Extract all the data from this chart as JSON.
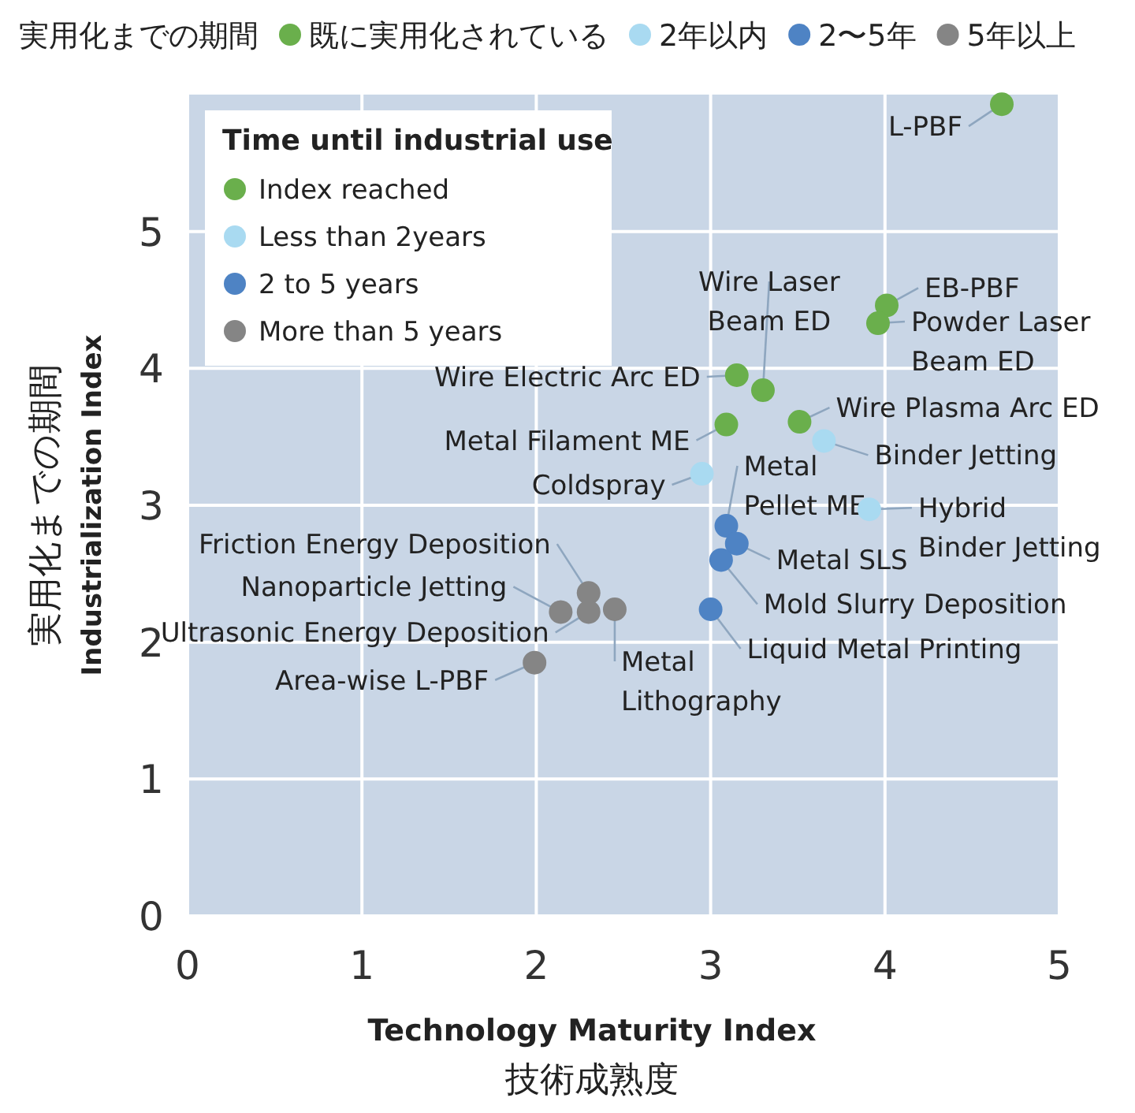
{
  "chart_data": {
    "type": "scatter",
    "xlabel": "Technology Maturity Index\n技術成熟度",
    "ylabel": "実用化までの期間\nIndustrialization Index",
    "legend_title": "Time until industrial use",
    "legend": "top left",
    "grid": true,
    "marker": "circle",
    "xlim": [
      0,
      5
    ],
    "xticks": [
      0,
      1,
      2,
      3,
      4,
      5
    ],
    "ylim": [
      0,
      6
    ],
    "yticks": [
      0,
      1,
      2,
      3,
      4,
      5
    ],
    "series": [
      {
        "name": "Index reached",
        "color": "#6aaf4c",
        "x": [
          4.67,
          4.01,
          3.96,
          3.3,
          3.15,
          3.51,
          3.09
        ],
        "values": [
          5.93,
          4.46,
          4.33,
          3.84,
          3.95,
          3.61,
          3.59
        ]
      },
      {
        "name": "Less than 2years",
        "color": "#a9daf1",
        "x": [
          3.65,
          2.95,
          3.91
        ],
        "values": [
          3.47,
          3.23,
          2.97
        ]
      },
      {
        "name": "2 to 5 years",
        "color": "#4e83c4",
        "x": [
          3.09,
          3.15,
          3.06,
          3.0
        ],
        "values": [
          2.85,
          2.72,
          2.6,
          2.24
        ]
      },
      {
        "name": "More than 5 years",
        "color": "#858585",
        "x": [
          2.3,
          2.14,
          2.3,
          2.45,
          1.99
        ],
        "values": [
          2.36,
          2.22,
          2.22,
          2.24,
          1.85
        ]
      }
    ],
    "annotations": [
      "実用化までの期間",
      "既に実用化されている",
      "2年以内",
      "2〜5年",
      "5年以上",
      {
        "text": "L-PBF",
        "x": 4.67,
        "y": 5.93
      },
      {
        "text": "EB-PBF",
        "x": 4.01,
        "y": 4.46
      },
      {
        "text": "Powder Laser\nBeam ED",
        "x": 3.96,
        "y": 4.33
      },
      {
        "text": "Wire Laser\nBeam ED",
        "x": 3.3,
        "y": 3.84
      },
      {
        "text": "Wire Electric Arc ED",
        "x": 3.15,
        "y": 3.95
      },
      {
        "text": "Wire Plasma Arc ED",
        "x": 3.51,
        "y": 3.61
      },
      {
        "text": "Metal Filament ME",
        "x": 3.09,
        "y": 3.59
      },
      {
        "text": "Binder Jetting",
        "x": 3.65,
        "y": 3.47
      },
      {
        "text": "Coldspray",
        "x": 2.95,
        "y": 3.23
      },
      {
        "text": "Hybrid\nBinder Jetting",
        "x": 3.91,
        "y": 2.97
      },
      {
        "text": "Metal\nPellet ME",
        "x": 3.09,
        "y": 2.85
      },
      {
        "text": "Metal SLS",
        "x": 3.15,
        "y": 2.72
      },
      {
        "text": "Mold Slurry Deposition",
        "x": 3.06,
        "y": 2.6
      },
      {
        "text": "Liquid Metal Printing",
        "x": 3.0,
        "y": 2.24
      },
      {
        "text": "Friction Energy Deposition",
        "x": 2.3,
        "y": 2.36
      },
      {
        "text": "Nanoparticle Jetting",
        "x": 2.14,
        "y": 2.22
      },
      {
        "text": "Ultrasonic Energy Deposition",
        "x": 2.3,
        "y": 2.22
      },
      {
        "text": "Metal\nLithography",
        "x": 2.45,
        "y": 2.24
      },
      {
        "text": "Area-wise L-PBF",
        "x": 1.99,
        "y": 1.85
      }
    ]
  }
}
